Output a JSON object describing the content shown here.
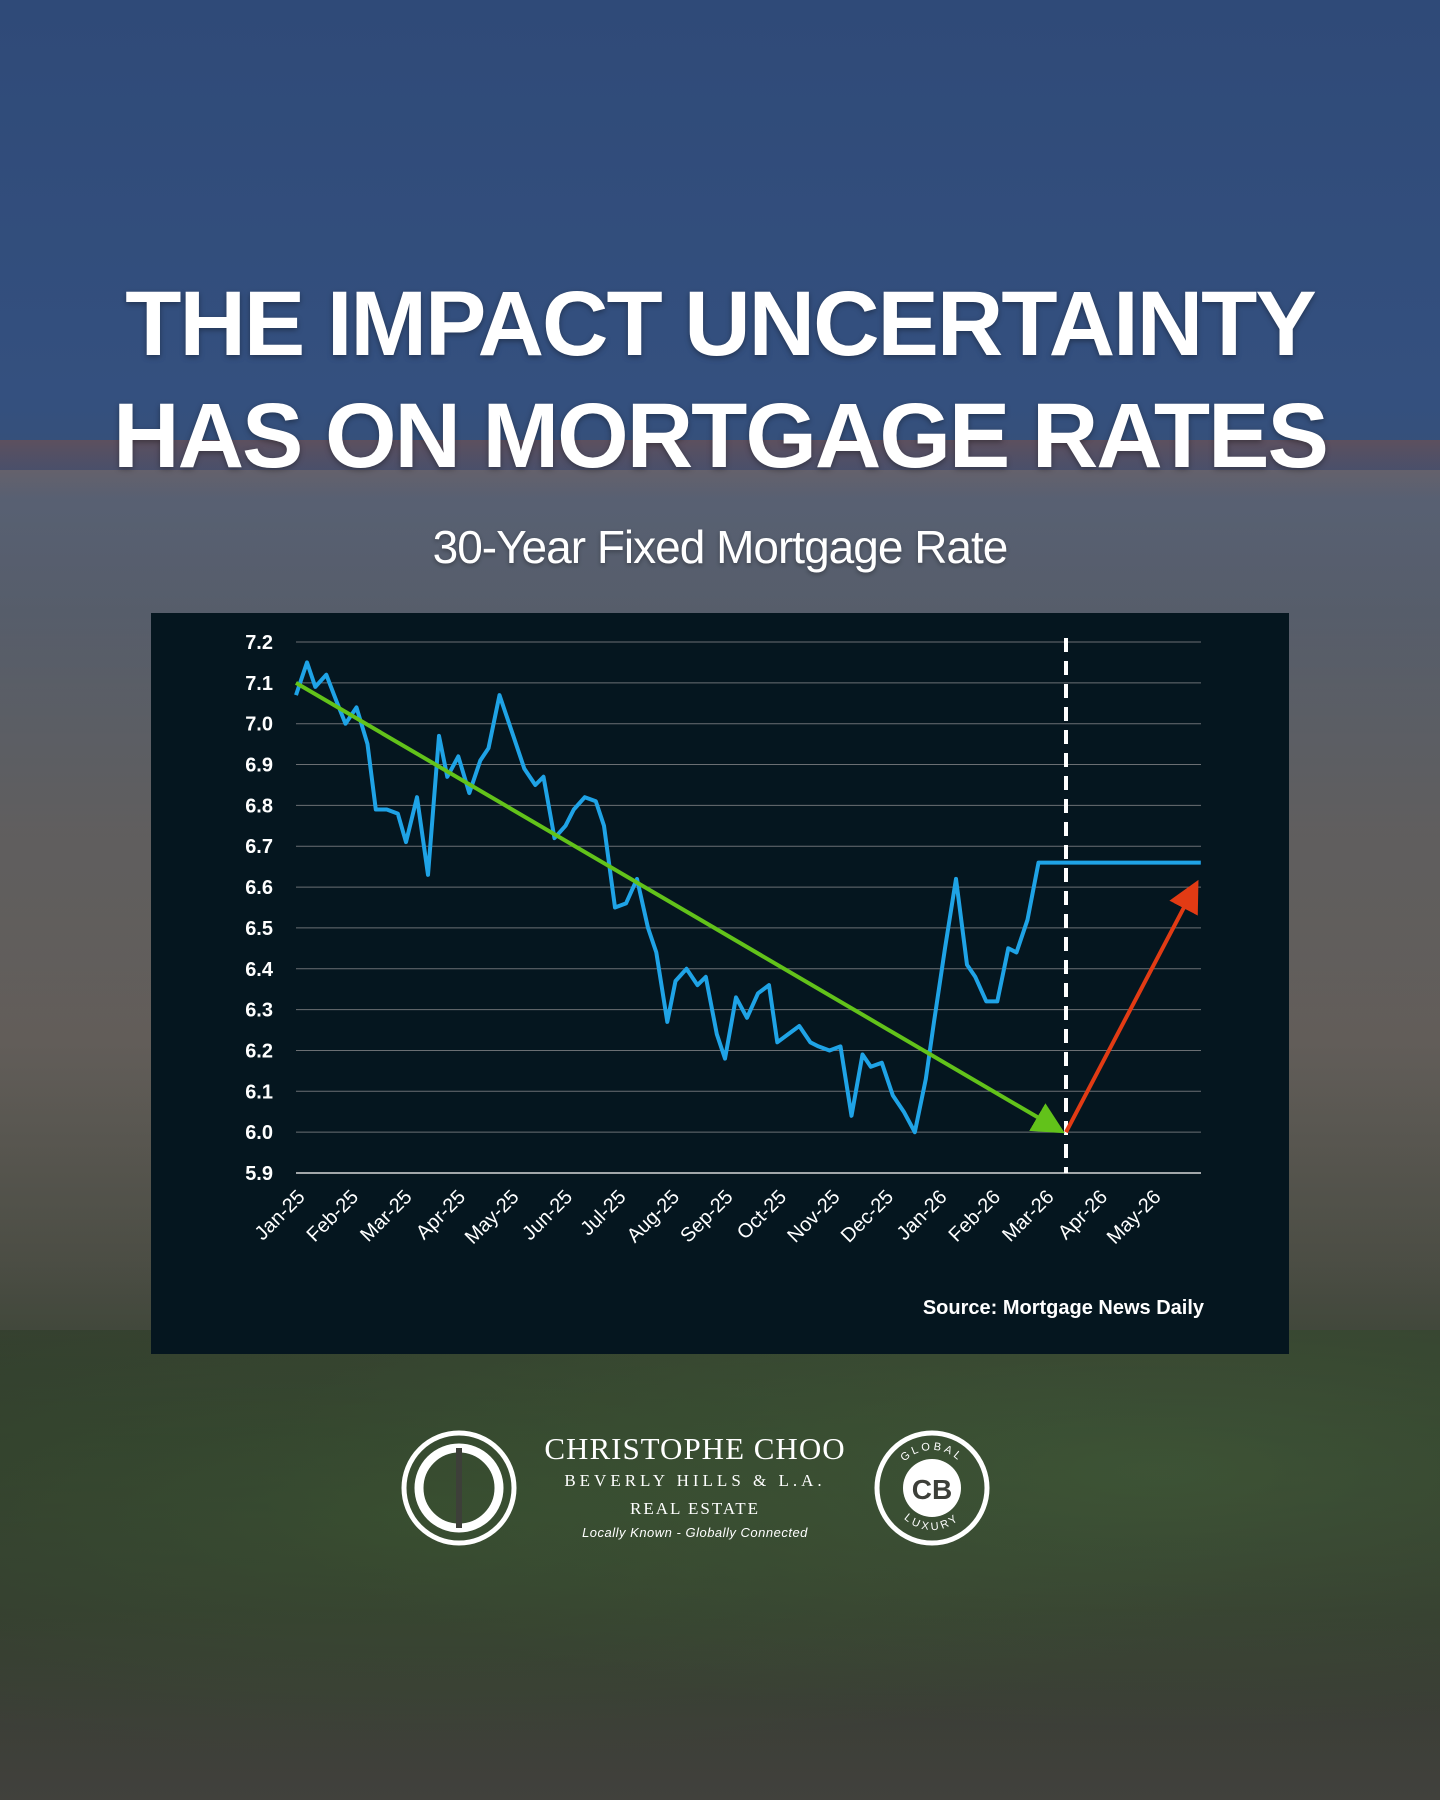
{
  "header": {
    "title_line1": "THE IMPACT UNCERTAINTY",
    "title_line2": "HAS ON MORTGAGE RATES",
    "subtitle": "30-Year Fixed Mortgage Rate"
  },
  "chart_data": {
    "type": "line",
    "title": "30-Year Fixed Mortgage Rate",
    "source": "Source: Mortgage News Daily",
    "ylim": [
      5.9,
      7.2
    ],
    "yticks": [
      "7.2",
      "7.1",
      "7.0",
      "6.9",
      "6.8",
      "6.7",
      "6.6",
      "6.5",
      "6.4",
      "6.3",
      "6.2",
      "6.1",
      "6.0",
      "5.9"
    ],
    "xticks": [
      "Jan-25",
      "Feb-25",
      "Mar-25",
      "Apr-25",
      "May-25",
      "Jun-25",
      "Jul-25",
      "Aug-25",
      "Sep-25",
      "Oct-25",
      "Nov-25",
      "Dec-25",
      "Jan-26",
      "Feb-26",
      "Mar-26",
      "Apr-26",
      "May-26"
    ],
    "grid": true,
    "series": [
      {
        "color": "#1fa3e6",
        "x": [
          0,
          0.2,
          0.35,
          0.55,
          0.75,
          0.9,
          1.1,
          1.3,
          1.45,
          1.65,
          1.85,
          2.0,
          2.2,
          2.4,
          2.6,
          2.75,
          2.95,
          3.15,
          3.35,
          3.5,
          3.7,
          3.95,
          4.15,
          4.35,
          4.5,
          4.7,
          4.9,
          5.05,
          5.25,
          5.45,
          5.6,
          5.8,
          6.0,
          6.2,
          6.4,
          6.55,
          6.75,
          6.9,
          7.1,
          7.3,
          7.45,
          7.65,
          7.8,
          8.0,
          8.2,
          8.4,
          8.6,
          8.75,
          8.95,
          9.15,
          9.35,
          9.5,
          9.7,
          9.9,
          10.1,
          10.3,
          10.45,
          10.65,
          10.85,
          11.05,
          11.25,
          11.45,
          11.6,
          11.8,
          12.0,
          12.2,
          12.35,
          12.55,
          12.75,
          12.95,
          13.1,
          13.3,
          13.5,
          13.7,
          13.85,
          14.05,
          14.25,
          14.45,
          14.6,
          14.8,
          15.0,
          15.15,
          15.35,
          15.55,
          15.75,
          15.9,
          16.1,
          16.3,
          16.45
        ],
        "y": [
          7.07,
          7.15,
          7.09,
          7.12,
          7.05,
          7.0,
          7.04,
          6.95,
          6.79,
          6.79,
          6.78,
          6.71,
          6.82,
          6.63,
          6.97,
          6.87,
          6.92,
          6.83,
          6.91,
          6.94,
          7.07,
          6.97,
          6.89,
          6.85,
          6.87,
          6.72,
          6.75,
          6.79,
          6.82,
          6.81,
          6.75,
          6.55,
          6.56,
          6.62,
          6.5,
          6.44,
          6.27,
          6.37,
          6.4,
          6.36,
          6.38,
          6.24,
          6.18,
          6.33,
          6.28,
          6.34,
          6.36,
          6.22,
          6.24,
          6.26,
          6.22,
          6.21,
          6.2,
          6.21,
          6.04,
          6.19,
          6.16,
          6.17,
          6.09,
          6.05,
          6.0,
          6.13,
          6.27,
          6.45,
          6.62,
          6.41,
          6.38,
          6.32,
          6.32,
          6.45,
          6.44,
          6.52,
          6.66,
          6.66,
          6.66,
          6.66,
          6.66,
          6.66,
          6.66,
          6.66,
          6.66,
          6.66,
          6.66,
          6.66,
          6.66,
          6.66,
          6.66,
          6.66,
          6.66
        ]
      }
    ],
    "annotations": {
      "down_trend": {
        "color": "#62c21a",
        "from": [
          0,
          7.1
        ],
        "to": [
          14.0,
          6.0
        ]
      },
      "up_trend": {
        "color": "#e23b14",
        "from": [
          14.0,
          6.0
        ],
        "to": [
          16.45,
          6.62
        ]
      },
      "vline": {
        "x": 14.0,
        "style": "dashed",
        "color": "#ffffff"
      }
    }
  },
  "branding": {
    "name": "CHRISTOPHE CHOO",
    "line2": "BEVERLY HILLS & L.A.",
    "line3": "REAL ESTATE",
    "tagline": "Locally Known - Globally Connected",
    "badge_text_top": "GLOBAL",
    "badge_text_bottom": "LUXURY",
    "badge_mark": "CB"
  }
}
